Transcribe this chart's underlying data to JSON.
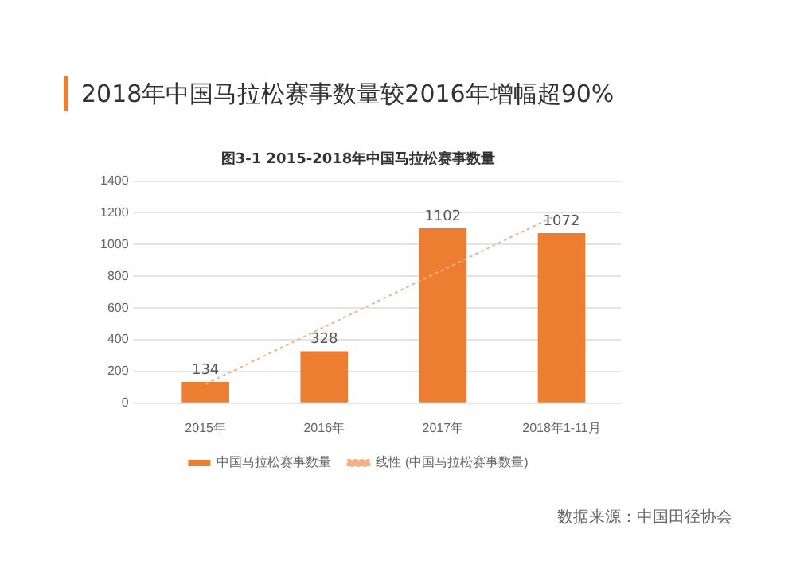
{
  "chart_data": {
    "type": "bar",
    "title": "2018年中国马拉松赛事数量较2016年增幅超90%",
    "subtitle": "图3-1 2015-2018年中国马拉松赛事数量",
    "categories": [
      "2015年",
      "2016年",
      "2017年",
      "2018年1-11月"
    ],
    "series": [
      {
        "name": "中国马拉松赛事数量",
        "color": "#ed7d31",
        "values": [
          134,
          328,
          1102,
          1072
        ],
        "value_labels": [
          "134",
          "328",
          "1102",
          "1072"
        ]
      },
      {
        "name": "线性 (中国马拉松赛事数量)",
        "type": "line",
        "color": "#f4b183",
        "values": [
          120,
          480,
          840,
          1200
        ],
        "line_style": "dotted",
        "marker": "none"
      }
    ],
    "ylim": [
      0,
      1400
    ],
    "yticks": [
      0,
      200,
      400,
      600,
      800,
      1000,
      1200,
      1400
    ],
    "grid": "y",
    "legend": "bottom",
    "annotations": [
      "数据来源：中国田径协会"
    ]
  }
}
